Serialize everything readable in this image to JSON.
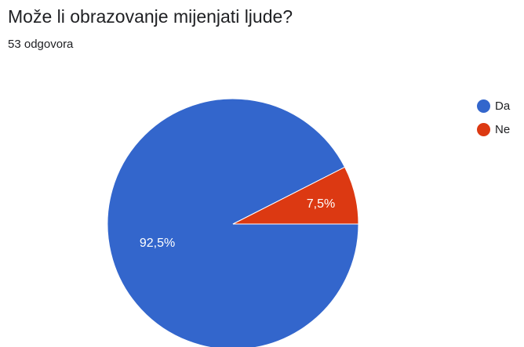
{
  "question": {
    "title": "Može li obrazovanje mijenjati ljude?",
    "response_count": "53 odgovora"
  },
  "chart_data": {
    "type": "pie",
    "categories": [
      "Da",
      "Ne"
    ],
    "values": [
      92.5,
      7.5
    ],
    "data_labels": [
      "92,5%",
      "7,5%"
    ],
    "colors": [
      "#3366cc",
      "#dc3912"
    ],
    "legend_position": "right",
    "title": "Može li obrazovanje mijenjati ljude?"
  }
}
